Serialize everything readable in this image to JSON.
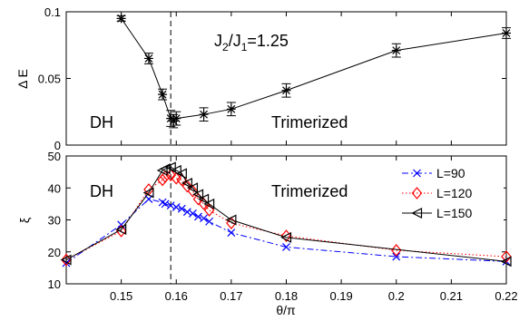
{
  "chart_data": [
    {
      "type": "line",
      "ylabel": "Δ E",
      "xlabel": "",
      "xlim": [
        0.14,
        0.22
      ],
      "ylim": [
        0,
        0.1
      ],
      "yticks": [
        "0",
        "0.05",
        "0.1"
      ],
      "annotations": [
        "J₂/J₁=1.25",
        "DH",
        "Trimerized"
      ],
      "vline_x": 0.159,
      "grid": false,
      "series": [
        {
          "marker": "*",
          "color": "#000000",
          "errorbars": true,
          "x": [
            0.15,
            0.155,
            0.1575,
            0.159,
            0.1595,
            0.16,
            0.165,
            0.17,
            0.18,
            0.2,
            0.22
          ],
          "y": [
            0.095,
            0.065,
            0.038,
            0.02,
            0.018,
            0.02,
            0.023,
            0.027,
            0.041,
            0.071,
            0.084
          ],
          "err": [
            0.002,
            0.004,
            0.004,
            0.006,
            0.005,
            0.005,
            0.005,
            0.005,
            0.005,
            0.005,
            0.004
          ]
        }
      ]
    },
    {
      "type": "line",
      "xlabel": "θ/π",
      "ylabel": "ξ",
      "xlim": [
        0.14,
        0.22
      ],
      "ylim": [
        10,
        50
      ],
      "xticks": [
        "0.15",
        "0.16",
        "0.17",
        "0.18",
        "0.19",
        "0.2",
        "0.21",
        "0.22"
      ],
      "yticks": [
        "10",
        "20",
        "30",
        "40",
        "50"
      ],
      "annotations": [
        "DH",
        "Trimerized"
      ],
      "vline_x": 0.159,
      "legend_position": "top-right",
      "grid": false,
      "series": [
        {
          "name": "L=90",
          "color": "#0000ff",
          "marker": "x",
          "linestyle": "dash-dot",
          "x": [
            0.14,
            0.15,
            0.155,
            0.1575,
            0.158,
            0.159,
            0.16,
            0.161,
            0.162,
            0.163,
            0.164,
            0.165,
            0.166,
            0.17,
            0.18,
            0.2,
            0.22
          ],
          "y": [
            16.5,
            28.5,
            36.5,
            35.5,
            35.0,
            34.5,
            34.0,
            33.5,
            32.5,
            32.0,
            31.0,
            30.5,
            29.5,
            26.0,
            21.5,
            18.5,
            17.0
          ]
        },
        {
          "name": "L=120",
          "color": "#ff0000",
          "marker": "diamond",
          "linestyle": "dotted",
          "x": [
            0.14,
            0.15,
            0.155,
            0.1575,
            0.158,
            0.159,
            0.16,
            0.161,
            0.162,
            0.163,
            0.164,
            0.165,
            0.166,
            0.17,
            0.18,
            0.2,
            0.22
          ],
          "y": [
            17.5,
            26.5,
            39.5,
            42.5,
            43.5,
            44.0,
            43.0,
            42.5,
            40.5,
            39.0,
            36.5,
            35.0,
            33.0,
            29.0,
            25.0,
            20.5,
            18.5
          ]
        },
        {
          "name": "L=150",
          "color": "#000000",
          "marker": "triangle-left",
          "linestyle": "solid",
          "x": [
            0.14,
            0.15,
            0.155,
            0.1575,
            0.158,
            0.159,
            0.16,
            0.161,
            0.162,
            0.163,
            0.164,
            0.165,
            0.166,
            0.17,
            0.18,
            0.22
          ],
          "y": [
            17.5,
            27.0,
            38.5,
            45.5,
            46.0,
            46.5,
            45.5,
            44.5,
            41.5,
            40.0,
            38.0,
            36.5,
            35.0,
            30.0,
            24.5,
            17.0
          ]
        }
      ]
    }
  ]
}
